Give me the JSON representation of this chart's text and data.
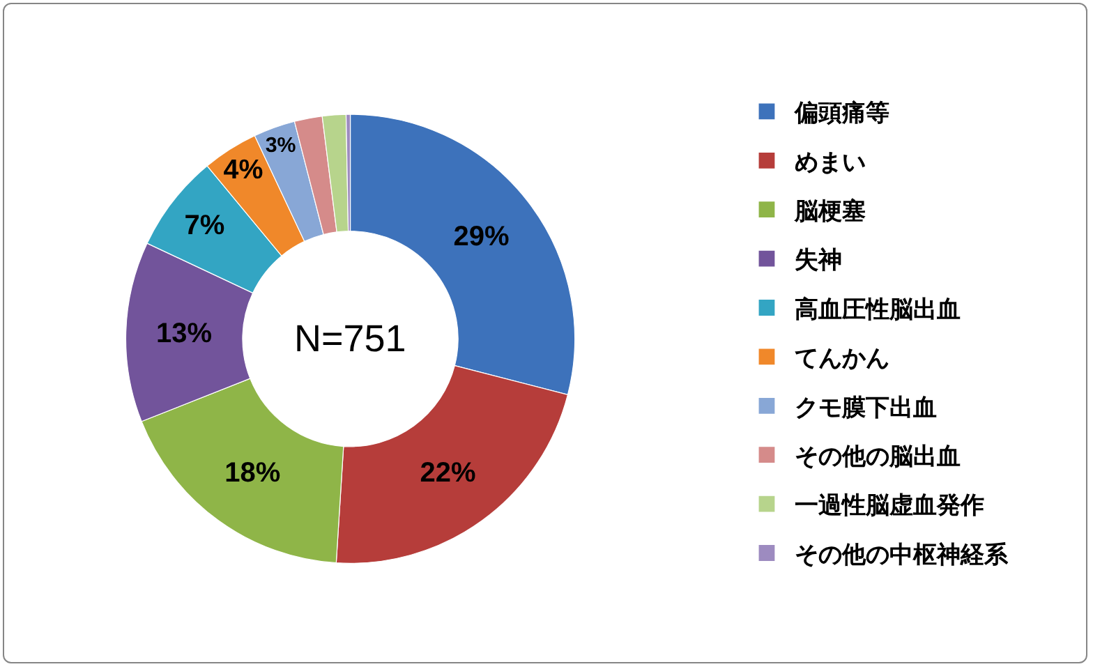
{
  "chart_data": {
    "type": "donut",
    "categories": [
      "偏頭痛等",
      "めまい",
      "脳梗塞",
      "失神",
      "高血圧性脳出血",
      "てんかん",
      "クモ膜下出血",
      "その他の脳出血",
      "一過性脳虚血発作",
      "その他の中枢神経系"
    ],
    "values": [
      29,
      22,
      18,
      13,
      7,
      4,
      3,
      2,
      1.7,
      0.3
    ],
    "colors": [
      "#3d72bb",
      "#b63d3a",
      "#8fb548",
      "#72549b",
      "#33a5c3",
      "#f0882a",
      "#88a7d6",
      "#d58b8a",
      "#b7d48c",
      "#9d8bc0"
    ],
    "value_labels": [
      "29%",
      "22%",
      "18%",
      "13%",
      "7%",
      "4%",
      "3%",
      null,
      null,
      null
    ],
    "annotations": [
      "N=751"
    ],
    "legend": "right"
  }
}
